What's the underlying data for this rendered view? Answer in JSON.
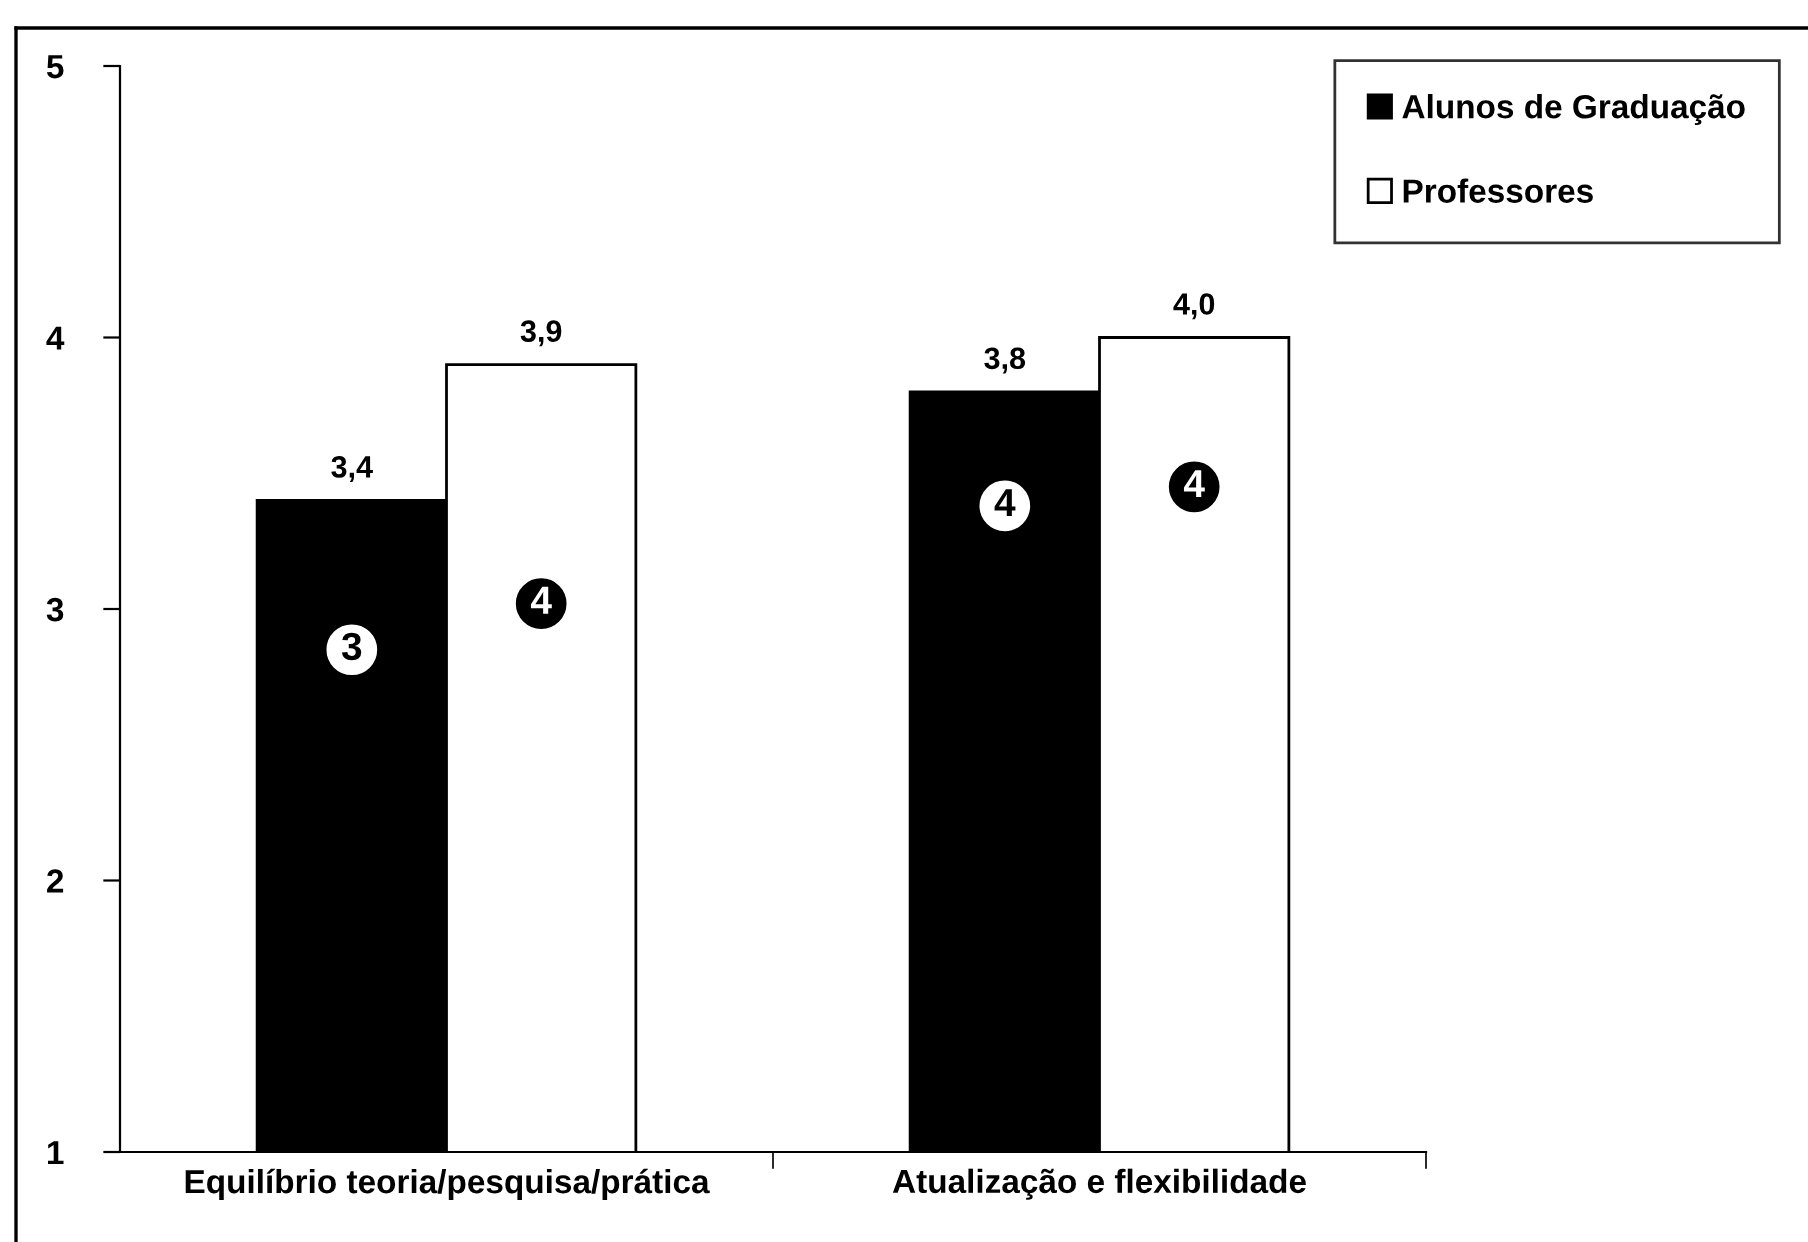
{
  "chart_data": {
    "type": "bar",
    "categories": [
      "Equilíbrio teoria/pesquisa/prática",
      "Atualização e flexibilidade"
    ],
    "series": [
      {
        "name": "Alunos de Graduação",
        "color": "#000000",
        "values": [
          3.4,
          3.8
        ],
        "value_labels": [
          "3,4",
          "3,8"
        ]
      },
      {
        "name": "Professores",
        "color": "#ffffff",
        "values": [
          3.9,
          4.0
        ],
        "value_labels": [
          "3,9",
          "4,0"
        ]
      }
    ],
    "ylim": [
      1,
      5
    ],
    "yticks": [
      1,
      2,
      3,
      4,
      5
    ],
    "grid": false,
    "legend": "top right",
    "annotations": [
      {
        "text": "3",
        "x": "Equilíbrio teoria/pesquisa/prática",
        "y": 2.85
      },
      {
        "text": "4",
        "x": "Equilíbrio teoria/pesquisa/prática",
        "y": 3.02
      },
      {
        "text": "4",
        "x": "Atualização e flexibilidade",
        "y": 3.38
      },
      {
        "text": "4",
        "x": "Atualização e flexibilidade",
        "y": 3.45
      }
    ]
  }
}
